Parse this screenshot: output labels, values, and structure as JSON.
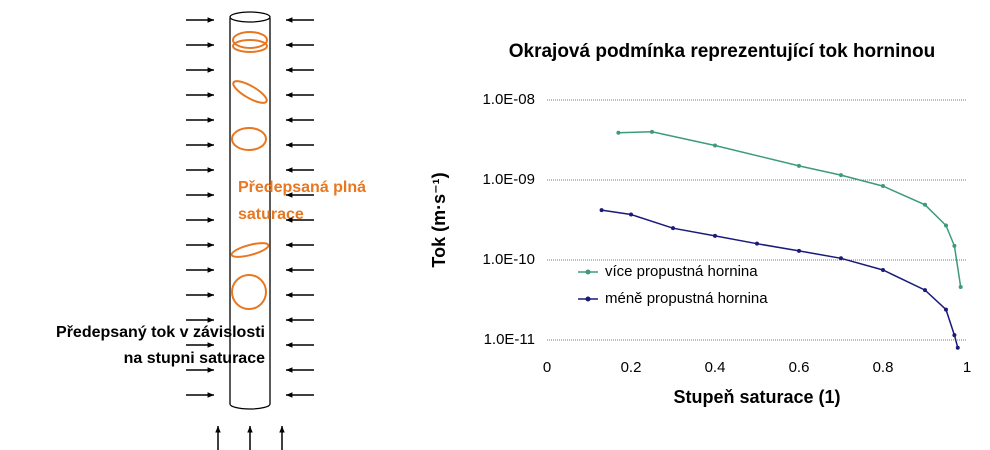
{
  "diagram": {
    "orange_label": [
      "Předepsaná plná",
      "saturace"
    ],
    "black_label": [
      "Předepsaný tok v závislosti",
      "na stupni saturace"
    ]
  },
  "chart_data": {
    "type": "line",
    "title": "Okrajová podmínka reprezentující tok horninou",
    "x_label": "Stupeň saturace (1)",
    "y_label": "Tok (m·s⁻¹)",
    "xlim": [
      0,
      1
    ],
    "xticks": [
      0,
      0.2,
      0.4,
      0.6,
      0.8,
      1
    ],
    "ylim": [
      1e-11,
      1e-08
    ],
    "yticks": [
      {
        "value": 1e-11,
        "label": "1.0E-11"
      },
      {
        "value": 1e-10,
        "label": "1.0E-10"
      },
      {
        "value": 1e-09,
        "label": "1.0E-09"
      },
      {
        "value": 1e-08,
        "label": "1.0E-08"
      }
    ],
    "log_y": true,
    "grid": true,
    "legend": "lower left",
    "series": [
      {
        "name": "více propustná hornina",
        "color": "#3d9a7d",
        "x": [
          0.17,
          0.25,
          0.4,
          0.6,
          0.7,
          0.8,
          0.9,
          0.95,
          0.97,
          0.985
        ],
        "values": [
          3.9e-09,
          4e-09,
          2.7e-09,
          1.5e-09,
          1.15e-09,
          8.4e-10,
          4.9e-10,
          2.7e-10,
          1.5e-10,
          4.6e-11
        ]
      },
      {
        "name": "méně propustná hornina",
        "color": "#1a1a7a",
        "x": [
          0.13,
          0.2,
          0.3,
          0.4,
          0.5,
          0.6,
          0.7,
          0.8,
          0.9,
          0.95,
          0.97,
          0.978
        ],
        "values": [
          4.2e-10,
          3.7e-10,
          2.5e-10,
          2e-10,
          1.6e-10,
          1.3e-10,
          1.05e-10,
          7.5e-11,
          4.2e-11,
          2.4e-11,
          1.15e-11,
          8e-12
        ]
      }
    ]
  }
}
